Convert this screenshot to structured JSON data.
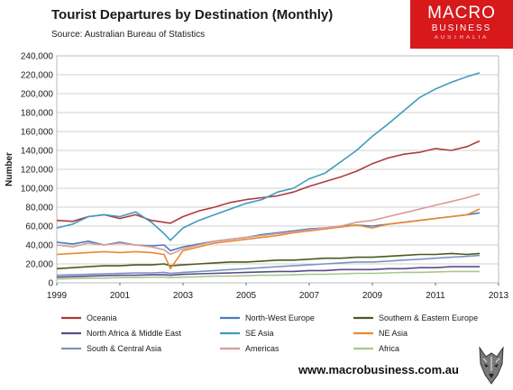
{
  "header": {
    "title": "Tourist Departures by Destination (Monthly)",
    "source": "Source: Australian Bureau of Statistics"
  },
  "logo": {
    "line1": "MACRO",
    "line2": "BUSINESS",
    "line3": "AUSTRALIA"
  },
  "footer": {
    "website": "www.macrobusiness.com.au"
  },
  "chart_data": {
    "type": "line",
    "title": "Tourist Departures by Destination (Monthly)",
    "ylabel": "Number",
    "xlabel": "",
    "xlim": [
      1999,
      2013
    ],
    "ylim": [
      0,
      240000
    ],
    "x_ticks": [
      "1999",
      "2001",
      "2003",
      "2005",
      "2007",
      "2009",
      "2011",
      "2013"
    ],
    "y_ticks": [
      "0",
      "20,000",
      "40,000",
      "60,000",
      "80,000",
      "100,000",
      "120,000",
      "140,000",
      "160,000",
      "180,000",
      "200,000",
      "220,000",
      "240,000"
    ],
    "grid": true,
    "legend_position": "bottom",
    "series": [
      {
        "name": "Oceania",
        "color": "#b03a3a",
        "points": [
          [
            1999.0,
            66000
          ],
          [
            1999.5,
            65000
          ],
          [
            2000.0,
            70000
          ],
          [
            2000.5,
            72000
          ],
          [
            2001.0,
            68000
          ],
          [
            2001.5,
            72000
          ],
          [
            2002.0,
            66000
          ],
          [
            2002.4,
            64000
          ],
          [
            2002.6,
            63000
          ],
          [
            2003.0,
            70000
          ],
          [
            2003.5,
            76000
          ],
          [
            2004.0,
            80000
          ],
          [
            2004.5,
            85000
          ],
          [
            2005.0,
            88000
          ],
          [
            2005.5,
            90000
          ],
          [
            2006.0,
            92000
          ],
          [
            2006.5,
            96000
          ],
          [
            2007.0,
            102000
          ],
          [
            2007.5,
            107000
          ],
          [
            2008.0,
            112000
          ],
          [
            2008.5,
            118000
          ],
          [
            2009.0,
            126000
          ],
          [
            2009.5,
            132000
          ],
          [
            2010.0,
            136000
          ],
          [
            2010.5,
            138000
          ],
          [
            2011.0,
            142000
          ],
          [
            2011.5,
            140000
          ],
          [
            2012.0,
            144000
          ],
          [
            2012.4,
            150000
          ]
        ]
      },
      {
        "name": "North-West Europe",
        "color": "#4a7cc0",
        "points": [
          [
            1999.0,
            43000
          ],
          [
            1999.5,
            41000
          ],
          [
            2000.0,
            44000
          ],
          [
            2000.5,
            40000
          ],
          [
            2001.0,
            43000
          ],
          [
            2001.5,
            40000
          ],
          [
            2002.0,
            39000
          ],
          [
            2002.4,
            40000
          ],
          [
            2002.6,
            34000
          ],
          [
            2003.0,
            38000
          ],
          [
            2003.5,
            41000
          ],
          [
            2004.0,
            44000
          ],
          [
            2004.5,
            46000
          ],
          [
            2005.0,
            48000
          ],
          [
            2005.5,
            51000
          ],
          [
            2006.0,
            53000
          ],
          [
            2006.5,
            55000
          ],
          [
            2007.0,
            57000
          ],
          [
            2007.5,
            58000
          ],
          [
            2008.0,
            60000
          ],
          [
            2008.5,
            61000
          ],
          [
            2009.0,
            60000
          ],
          [
            2009.5,
            62000
          ],
          [
            2010.0,
            64000
          ],
          [
            2010.5,
            66000
          ],
          [
            2011.0,
            68000
          ],
          [
            2011.5,
            70000
          ],
          [
            2012.0,
            72000
          ],
          [
            2012.4,
            74000
          ]
        ]
      },
      {
        "name": "Southern & Eastern Europe",
        "color": "#4a5a1e",
        "points": [
          [
            1999.0,
            15000
          ],
          [
            1999.5,
            16000
          ],
          [
            2000.0,
            17000
          ],
          [
            2000.5,
            18000
          ],
          [
            2001.0,
            18000
          ],
          [
            2001.5,
            19000
          ],
          [
            2002.0,
            19000
          ],
          [
            2002.4,
            20000
          ],
          [
            2002.6,
            18000
          ],
          [
            2003.0,
            19000
          ],
          [
            2003.5,
            20000
          ],
          [
            2004.0,
            21000
          ],
          [
            2004.5,
            22000
          ],
          [
            2005.0,
            22000
          ],
          [
            2005.5,
            23000
          ],
          [
            2006.0,
            24000
          ],
          [
            2006.5,
            24000
          ],
          [
            2007.0,
            25000
          ],
          [
            2007.5,
            26000
          ],
          [
            2008.0,
            26000
          ],
          [
            2008.5,
            27000
          ],
          [
            2009.0,
            27000
          ],
          [
            2009.5,
            28000
          ],
          [
            2010.0,
            29000
          ],
          [
            2010.5,
            30000
          ],
          [
            2011.0,
            30000
          ],
          [
            2011.5,
            31000
          ],
          [
            2012.0,
            30000
          ],
          [
            2012.4,
            31000
          ]
        ]
      },
      {
        "name": "North Africa & Middle East",
        "color": "#5a4a8a",
        "points": [
          [
            1999.0,
            6000
          ],
          [
            1999.5,
            6500
          ],
          [
            2000.0,
            7000
          ],
          [
            2000.5,
            7500
          ],
          [
            2001.0,
            8000
          ],
          [
            2001.5,
            8000
          ],
          [
            2002.0,
            8500
          ],
          [
            2002.4,
            8500
          ],
          [
            2002.6,
            8000
          ],
          [
            2003.0,
            9000
          ],
          [
            2003.5,
            9500
          ],
          [
            2004.0,
            10000
          ],
          [
            2004.5,
            10500
          ],
          [
            2005.0,
            11000
          ],
          [
            2005.5,
            11500
          ],
          [
            2006.0,
            12000
          ],
          [
            2006.5,
            12000
          ],
          [
            2007.0,
            13000
          ],
          [
            2007.5,
            13000
          ],
          [
            2008.0,
            14000
          ],
          [
            2008.5,
            14000
          ],
          [
            2009.0,
            14000
          ],
          [
            2009.5,
            15000
          ],
          [
            2010.0,
            15000
          ],
          [
            2010.5,
            16000
          ],
          [
            2011.0,
            16000
          ],
          [
            2011.5,
            17000
          ],
          [
            2012.0,
            17000
          ],
          [
            2012.4,
            17000
          ]
        ]
      },
      {
        "name": "SE Asia",
        "color": "#3e9bbf",
        "points": [
          [
            1999.0,
            58000
          ],
          [
            1999.5,
            62000
          ],
          [
            2000.0,
            70000
          ],
          [
            2000.5,
            72000
          ],
          [
            2001.0,
            70000
          ],
          [
            2001.5,
            75000
          ],
          [
            2002.0,
            64000
          ],
          [
            2002.4,
            52000
          ],
          [
            2002.6,
            45000
          ],
          [
            2003.0,
            58000
          ],
          [
            2003.5,
            66000
          ],
          [
            2004.0,
            72000
          ],
          [
            2004.5,
            78000
          ],
          [
            2005.0,
            84000
          ],
          [
            2005.5,
            88000
          ],
          [
            2006.0,
            96000
          ],
          [
            2006.5,
            100000
          ],
          [
            2007.0,
            110000
          ],
          [
            2007.5,
            116000
          ],
          [
            2008.0,
            128000
          ],
          [
            2008.5,
            140000
          ],
          [
            2009.0,
            155000
          ],
          [
            2009.5,
            168000
          ],
          [
            2010.0,
            182000
          ],
          [
            2010.5,
            196000
          ],
          [
            2011.0,
            205000
          ],
          [
            2011.5,
            212000
          ],
          [
            2012.0,
            218000
          ],
          [
            2012.4,
            222000
          ]
        ]
      },
      {
        "name": "NE Asia",
        "color": "#e88a2e",
        "points": [
          [
            1999.0,
            30000
          ],
          [
            1999.5,
            31000
          ],
          [
            2000.0,
            32000
          ],
          [
            2000.5,
            33000
          ],
          [
            2001.0,
            32000
          ],
          [
            2001.5,
            33000
          ],
          [
            2002.0,
            32000
          ],
          [
            2002.4,
            30000
          ],
          [
            2002.6,
            15000
          ],
          [
            2003.0,
            34000
          ],
          [
            2003.5,
            38000
          ],
          [
            2004.0,
            42000
          ],
          [
            2004.5,
            44000
          ],
          [
            2005.0,
            46000
          ],
          [
            2005.5,
            48000
          ],
          [
            2006.0,
            50000
          ],
          [
            2006.5,
            53000
          ],
          [
            2007.0,
            55000
          ],
          [
            2007.5,
            57000
          ],
          [
            2008.0,
            59000
          ],
          [
            2008.5,
            61000
          ],
          [
            2009.0,
            58000
          ],
          [
            2009.5,
            62000
          ],
          [
            2010.0,
            64000
          ],
          [
            2010.5,
            66000
          ],
          [
            2011.0,
            68000
          ],
          [
            2011.5,
            70000
          ],
          [
            2012.0,
            72000
          ],
          [
            2012.4,
            78000
          ]
        ]
      },
      {
        "name": "South & Central Asia",
        "color": "#7a94c0",
        "points": [
          [
            1999.0,
            8000
          ],
          [
            1999.5,
            8500
          ],
          [
            2000.0,
            9000
          ],
          [
            2000.5,
            9500
          ],
          [
            2001.0,
            10000
          ],
          [
            2001.5,
            10500
          ],
          [
            2002.0,
            10500
          ],
          [
            2002.4,
            11000
          ],
          [
            2002.6,
            10000
          ],
          [
            2003.0,
            11000
          ],
          [
            2003.5,
            12000
          ],
          [
            2004.0,
            13000
          ],
          [
            2004.5,
            14000
          ],
          [
            2005.0,
            15000
          ],
          [
            2005.5,
            16000
          ],
          [
            2006.0,
            17000
          ],
          [
            2006.5,
            18000
          ],
          [
            2007.0,
            19000
          ],
          [
            2007.5,
            20000
          ],
          [
            2008.0,
            21000
          ],
          [
            2008.5,
            22000
          ],
          [
            2009.0,
            22000
          ],
          [
            2009.5,
            23000
          ],
          [
            2010.0,
            24000
          ],
          [
            2010.5,
            25000
          ],
          [
            2011.0,
            26000
          ],
          [
            2011.5,
            27000
          ],
          [
            2012.0,
            28000
          ],
          [
            2012.4,
            29000
          ]
        ]
      },
      {
        "name": "Americas",
        "color": "#d99a9a",
        "points": [
          [
            1999.0,
            40000
          ],
          [
            1999.5,
            38000
          ],
          [
            2000.0,
            42000
          ],
          [
            2000.5,
            40000
          ],
          [
            2001.0,
            42000
          ],
          [
            2001.5,
            40000
          ],
          [
            2002.0,
            38000
          ],
          [
            2002.4,
            35000
          ],
          [
            2002.6,
            30000
          ],
          [
            2003.0,
            36000
          ],
          [
            2003.5,
            40000
          ],
          [
            2004.0,
            44000
          ],
          [
            2004.5,
            46000
          ],
          [
            2005.0,
            48000
          ],
          [
            2005.5,
            50000
          ],
          [
            2006.0,
            52000
          ],
          [
            2006.5,
            54000
          ],
          [
            2007.0,
            56000
          ],
          [
            2007.5,
            58000
          ],
          [
            2008.0,
            60000
          ],
          [
            2008.5,
            64000
          ],
          [
            2009.0,
            66000
          ],
          [
            2009.5,
            70000
          ],
          [
            2010.0,
            74000
          ],
          [
            2010.5,
            78000
          ],
          [
            2011.0,
            82000
          ],
          [
            2011.5,
            86000
          ],
          [
            2012.0,
            90000
          ],
          [
            2012.4,
            94000
          ]
        ]
      },
      {
        "name": "Africa",
        "color": "#a8c98a",
        "points": [
          [
            1999.0,
            4000
          ],
          [
            1999.5,
            4500
          ],
          [
            2000.0,
            5000
          ],
          [
            2000.5,
            5000
          ],
          [
            2001.0,
            5500
          ],
          [
            2001.5,
            5500
          ],
          [
            2002.0,
            6000
          ],
          [
            2002.4,
            6000
          ],
          [
            2002.6,
            5500
          ],
          [
            2003.0,
            6000
          ],
          [
            2003.5,
            6500
          ],
          [
            2004.0,
            7000
          ],
          [
            2004.5,
            7000
          ],
          [
            2005.0,
            7500
          ],
          [
            2005.5,
            8000
          ],
          [
            2006.0,
            8000
          ],
          [
            2006.5,
            8500
          ],
          [
            2007.0,
            9000
          ],
          [
            2007.5,
            9000
          ],
          [
            2008.0,
            9500
          ],
          [
            2008.5,
            10000
          ],
          [
            2009.0,
            10000
          ],
          [
            2009.5,
            10500
          ],
          [
            2010.0,
            11000
          ],
          [
            2010.5,
            11000
          ],
          [
            2011.0,
            11500
          ],
          [
            2011.5,
            12000
          ],
          [
            2012.0,
            12000
          ],
          [
            2012.4,
            12000
          ]
        ]
      }
    ]
  }
}
